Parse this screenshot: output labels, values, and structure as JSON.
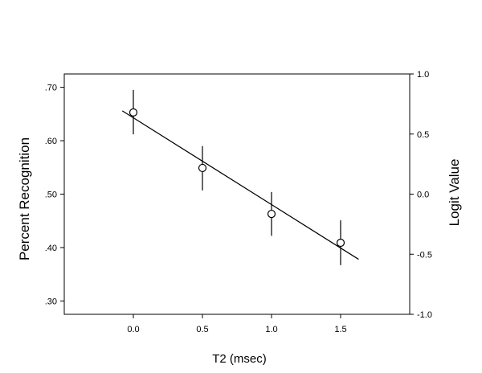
{
  "chart_data": {
    "type": "scatter",
    "xlabel": "T2 (msec)",
    "ylabel": "Percent Recognition",
    "y2label": "Logit Value",
    "xlim": [
      -0.5,
      2.0
    ],
    "ylim": [
      0.275,
      0.725
    ],
    "y2lim": [
      -1.0,
      1.0
    ],
    "x_ticks": [
      0.0,
      0.5,
      1.0,
      1.5
    ],
    "x_tick_labels": [
      "0.0",
      "0.5",
      "1.0",
      "1.5"
    ],
    "y_ticks": [
      0.3,
      0.4,
      0.5,
      0.6,
      0.7
    ],
    "y_tick_labels": [
      ".30",
      ".40",
      ".50",
      ".60",
      ".70"
    ],
    "y2_ticks": [
      -1.0,
      -0.5,
      0.0,
      0.5,
      1.0
    ],
    "y2_tick_labels": [
      "-1.0",
      "-0.5",
      "0.0",
      "0.5",
      "1.0"
    ],
    "grid": false,
    "series": [
      {
        "points": [
          {
            "x": 0.0,
            "y": 0.653,
            "err_low": 0.612,
            "err_high": 0.695
          },
          {
            "x": 0.5,
            "y": 0.549,
            "err_low": 0.507,
            "err_high": 0.59
          },
          {
            "x": 1.0,
            "y": 0.463,
            "err_low": 0.422,
            "err_high": 0.504
          },
          {
            "x": 1.5,
            "y": 0.409,
            "err_low": 0.367,
            "err_high": 0.451
          }
        ]
      }
    ],
    "fit_line": {
      "x": [
        -0.08,
        1.63
      ],
      "y": [
        0.656,
        0.378
      ]
    }
  }
}
